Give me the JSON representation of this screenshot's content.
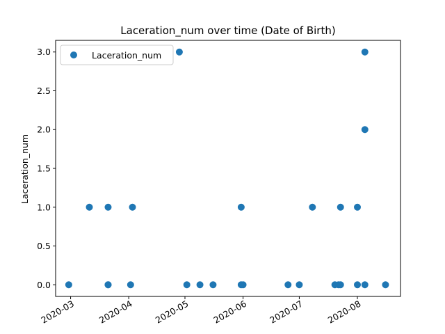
{
  "chart_data": {
    "type": "scatter",
    "title": "Laceration_num over time (Date of Birth)",
    "xlabel": "",
    "ylabel": "Laceration_num",
    "ylim": [
      -0.15,
      3.15
    ],
    "xlim": [
      "2020-02-22",
      "2020-08-24"
    ],
    "y_ticks": [
      "0.0",
      "0.5",
      "1.0",
      "1.5",
      "2.0",
      "2.5",
      "3.0"
    ],
    "x_ticks": [
      "2020-03",
      "2020-04",
      "2020-05",
      "2020-06",
      "2020-07",
      "2020-08"
    ],
    "grid": false,
    "legend": {
      "position": "top-left",
      "entries": [
        "Laceration_num"
      ]
    },
    "marker_color": "#1f77b4",
    "series": [
      {
        "name": "Laceration_num",
        "points": [
          {
            "x": "2020-02-29",
            "y": 0
          },
          {
            "x": "2020-03-11",
            "y": 1
          },
          {
            "x": "2020-03-21",
            "y": 0
          },
          {
            "x": "2020-03-21",
            "y": 0
          },
          {
            "x": "2020-03-21",
            "y": 1
          },
          {
            "x": "2020-04-02",
            "y": 0
          },
          {
            "x": "2020-04-03",
            "y": 1
          },
          {
            "x": "2020-04-28",
            "y": 3
          },
          {
            "x": "2020-05-02",
            "y": 0
          },
          {
            "x": "2020-05-09",
            "y": 0
          },
          {
            "x": "2020-05-16",
            "y": 0
          },
          {
            "x": "2020-05-31",
            "y": 1
          },
          {
            "x": "2020-05-31",
            "y": 0
          },
          {
            "x": "2020-06-01",
            "y": 0
          },
          {
            "x": "2020-06-25",
            "y": 0
          },
          {
            "x": "2020-07-01",
            "y": 0
          },
          {
            "x": "2020-07-08",
            "y": 1
          },
          {
            "x": "2020-07-20",
            "y": 0
          },
          {
            "x": "2020-07-22",
            "y": 0
          },
          {
            "x": "2020-07-23",
            "y": 1
          },
          {
            "x": "2020-07-23",
            "y": 0
          },
          {
            "x": "2020-08-01",
            "y": 1
          },
          {
            "x": "2020-08-01",
            "y": 0
          },
          {
            "x": "2020-08-05",
            "y": 3
          },
          {
            "x": "2020-08-05",
            "y": 2
          },
          {
            "x": "2020-08-05",
            "y": 0
          },
          {
            "x": "2020-08-16",
            "y": 0
          }
        ]
      }
    ]
  }
}
